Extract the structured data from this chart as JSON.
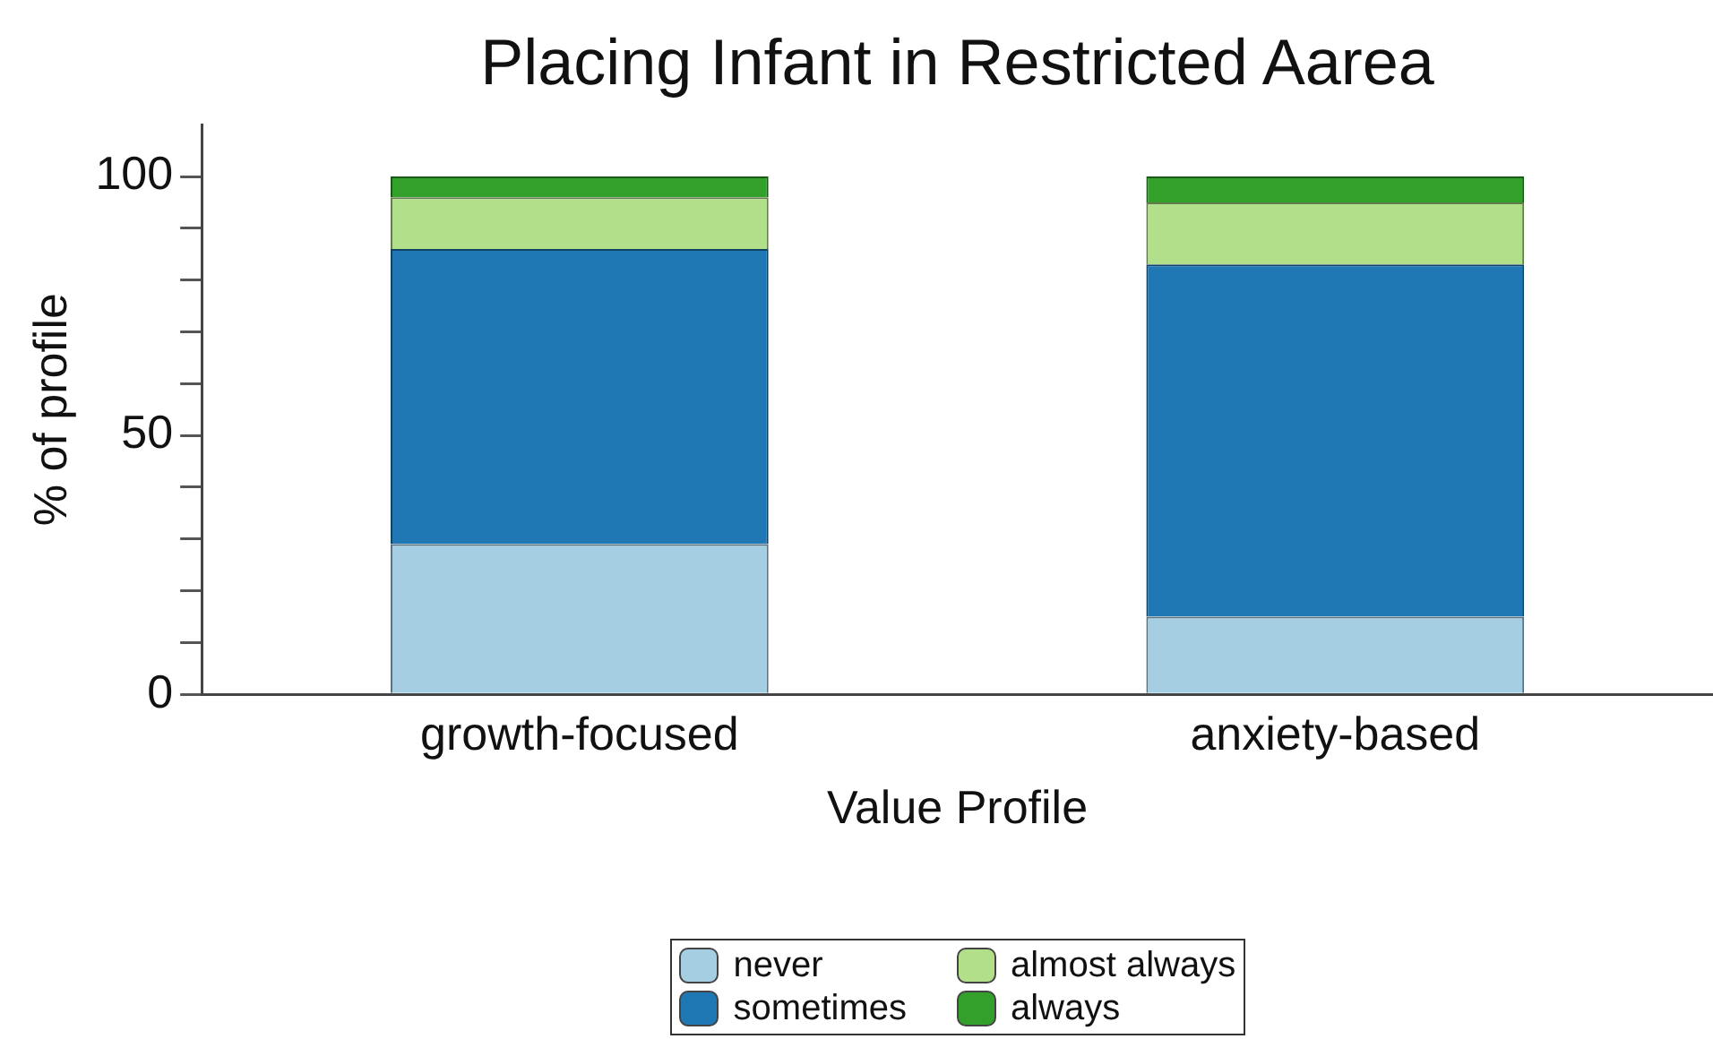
{
  "chart_data": {
    "type": "bar",
    "title": "Placing Infant in Restricted Aarea",
    "xlabel": "Value Profile",
    "ylabel": "% of profile",
    "categories": [
      "growth-focused",
      "anxiety-based"
    ],
    "stacked": true,
    "series": [
      {
        "name": "never",
        "color": "#a6cee3",
        "values": [
          29,
          15
        ]
      },
      {
        "name": "sometimes",
        "color": "#1f78b4",
        "values": [
          57,
          68
        ]
      },
      {
        "name": "almost always",
        "color": "#b2df8a",
        "values": [
          10,
          12
        ]
      },
      {
        "name": "always",
        "color": "#33a02c",
        "values": [
          4,
          5
        ]
      }
    ],
    "ylim": [
      0,
      110
    ],
    "yticks": [
      0,
      {
        "value": 10,
        "label": null
      },
      {
        "value": 20,
        "label": null
      },
      {
        "value": 30,
        "label": null
      },
      {
        "value": 40,
        "label": null
      },
      50,
      {
        "value": 60,
        "label": null
      },
      {
        "value": 70,
        "label": null
      },
      {
        "value": 80,
        "label": null
      },
      {
        "value": 90,
        "label": null
      },
      100
    ],
    "grid": false,
    "legend": "bottom"
  }
}
